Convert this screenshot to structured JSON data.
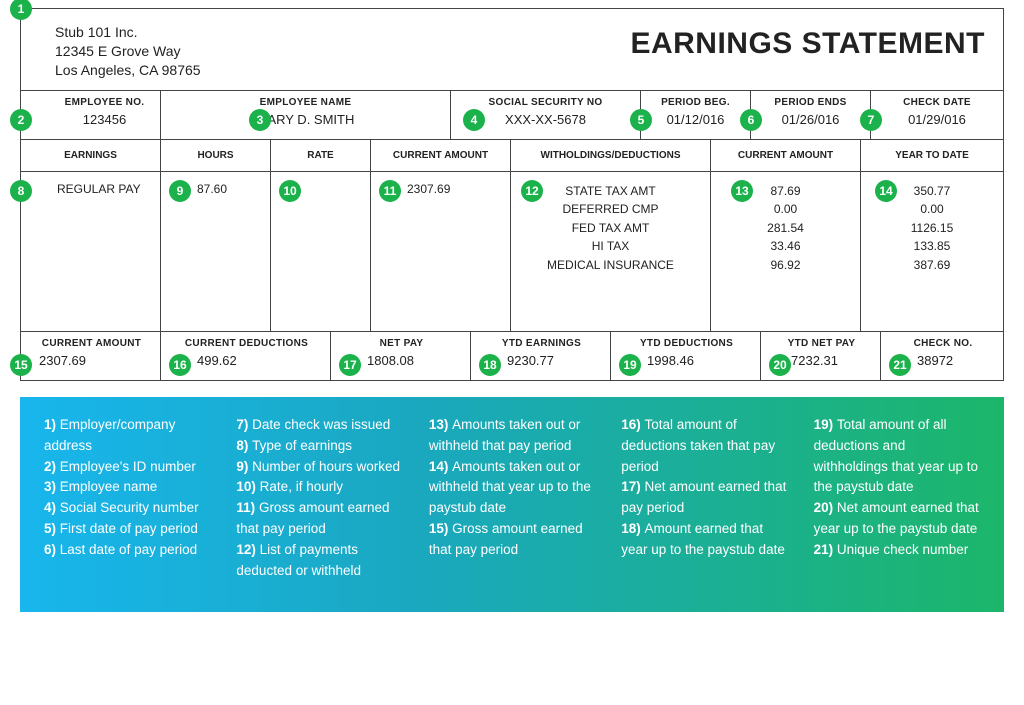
{
  "colors": {
    "badge_bg": "#1bb24b",
    "badge_fg": "#ffffff",
    "border": "#444444",
    "text": "#222222",
    "legend_gradient_from": "#18b6ed",
    "legend_gradient_to": "#1cb66a"
  },
  "header": {
    "company_name": "Stub 101 Inc.",
    "addr_line1": "12345 E Grove Way",
    "addr_line2": "Los Angeles, CA 98765",
    "title": "EARNINGS STATEMENT"
  },
  "employee": {
    "no_label": "EMPLOYEE NO.",
    "no": "123456",
    "name_label": "EMPLOYEE NAME",
    "name": "MARY D. SMITH",
    "ssn_label": "SOCIAL SECURITY NO",
    "ssn": "XXX-XX-5678",
    "period_beg_label": "PERIOD BEG.",
    "period_beg": "01/12/016",
    "period_end_label": "PERIOD ENDS",
    "period_end": "01/26/016",
    "check_date_label": "CHECK DATE",
    "check_date": "01/29/016"
  },
  "earnings_head": {
    "c1": "EARNINGS",
    "c2": "HOURS",
    "c3": "RATE",
    "c4": "CURRENT AMOUNT",
    "c5": "WITHOLDINGS/DEDUCTIONS",
    "c6": "CURRENT AMOUNT",
    "c7": "YEAR TO DATE"
  },
  "earnings": {
    "type": "REGULAR PAY",
    "hours": "87.60",
    "rate": "",
    "current_amount": "2307.69"
  },
  "deductions": {
    "names": [
      "STATE TAX AMT",
      "DEFERRED CMP",
      "FED TAX AMT",
      "HI TAX",
      "MEDICAL INSURANCE"
    ],
    "current": [
      "87.69",
      "0.00",
      "281.54",
      "33.46",
      "96.92"
    ],
    "ytd": [
      "350.77",
      "0.00",
      "1126.15",
      "133.85",
      "387.69"
    ]
  },
  "totals": {
    "cur_amt_label": "CURRENT AMOUNT",
    "cur_amt": "2307.69",
    "cur_ded_label": "CURRENT DEDUCTIONS",
    "cur_ded": "499.62",
    "net_pay_label": "NET PAY",
    "net_pay": "1808.08",
    "ytd_earn_label": "YTD EARNINGS",
    "ytd_earn": "9230.77",
    "ytd_ded_label": "YTD DEDUCTIONS",
    "ytd_ded": "1998.46",
    "ytd_net_label": "YTD NET PAY",
    "ytd_net": "7232.31",
    "check_no_label": "CHECK NO.",
    "check_no": "38972"
  },
  "legend": {
    "cols": [
      [
        "1) Employer/company address",
        "2) Employee's ID number",
        "3) Employee name",
        "4) Social Security number",
        "5) First date of pay period",
        "6) Last date of pay period"
      ],
      [
        "7) Date check was issued",
        "8) Type of earnings",
        "9) Number of hours worked",
        "10) Rate, if hourly",
        "11) Gross amount earned that pay period",
        "12) List of payments deducted or withheld"
      ],
      [
        "13) Amounts taken out or withheld that pay period",
        "14) Amounts taken out or withheld that year up to the paystub date",
        "15) Gross amount earned that pay period"
      ],
      [
        "16) Total amount of deductions taken that pay period",
        "17) Net amount earned that pay period",
        "18) Amount earned that year up to the paystub date"
      ],
      [
        "19) Total amount of all deductions and withholdings that year up to the paystub date",
        "20) Net amount earned that year up to the paystub date",
        "21) Unique check number"
      ]
    ]
  },
  "badges": {
    "b1": "1",
    "b2": "2",
    "b3": "3",
    "b4": "4",
    "b5": "5",
    "b6": "6",
    "b7": "7",
    "b8": "8",
    "b9": "9",
    "b10": "10",
    "b11": "11",
    "b12": "12",
    "b13": "13",
    "b14": "14",
    "b15": "15",
    "b16": "16",
    "b17": "17",
    "b18": "18",
    "b19": "19",
    "b20": "20",
    "b21": "21"
  }
}
